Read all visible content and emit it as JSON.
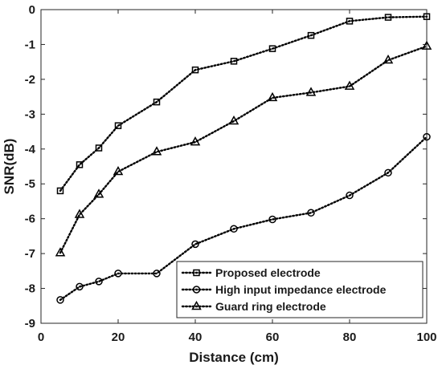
{
  "chart_data": {
    "type": "line",
    "xlabel": "Distance (cm)",
    "ylabel": "SNR(dB)",
    "xlim": [
      0,
      100
    ],
    "ylim": [
      -9,
      0
    ],
    "xticks": [
      0,
      20,
      40,
      60,
      80,
      100
    ],
    "yticks": [
      0,
      -1,
      -2,
      -3,
      -4,
      -5,
      -6,
      -7,
      -8,
      -9
    ],
    "grid": false,
    "legend_position": "bottom-right",
    "x": [
      5,
      10,
      15,
      20,
      30,
      40,
      50,
      60,
      70,
      80,
      90,
      100
    ],
    "series": [
      {
        "name": "Proposed electrode",
        "marker": "square",
        "line_style": "dotted",
        "color": "#000000",
        "values": [
          -5.2,
          -4.45,
          -3.97,
          -3.33,
          -2.65,
          -1.73,
          -1.48,
          -1.12,
          -0.74,
          -0.33,
          -0.22,
          -0.2
        ]
      },
      {
        "name": "High input impedance electrode",
        "marker": "circle",
        "line_style": "dotted",
        "color": "#000000",
        "values": [
          -8.33,
          -7.95,
          -7.8,
          -7.57,
          -7.57,
          -6.73,
          -6.29,
          -6.02,
          -5.83,
          -5.33,
          -4.68,
          -3.65
        ]
      },
      {
        "name": "Guard ring electrode",
        "marker": "triangle",
        "line_style": "dotted",
        "color": "#000000",
        "values": [
          -6.98,
          -5.88,
          -5.3,
          -4.65,
          -4.08,
          -3.8,
          -3.2,
          -2.53,
          -2.38,
          -2.2,
          -1.45,
          -1.05
        ]
      }
    ]
  }
}
